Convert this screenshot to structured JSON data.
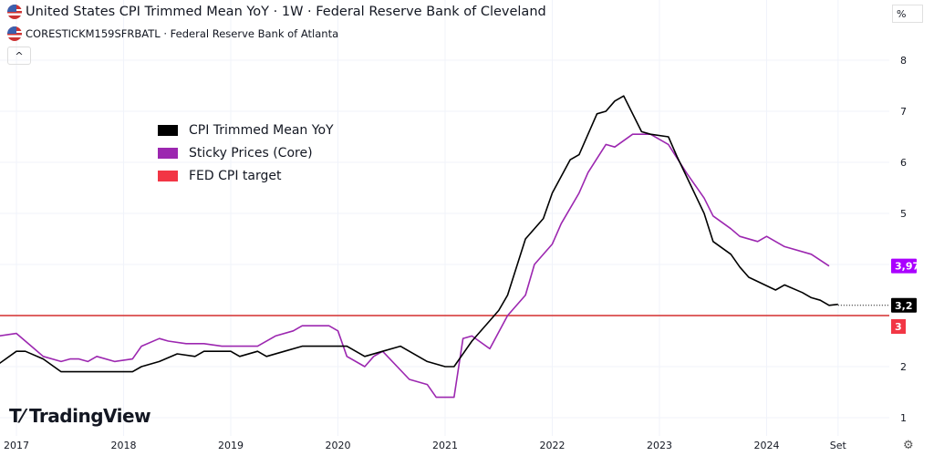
{
  "header": {
    "title": "United States CPI Trimmed Mean YoY · 1W · Federal Reserve Bank of Cleveland",
    "subtitle": "CORESTICKM159SFRBATL · Federal Reserve Bank of Atlanta",
    "collapse_label": "^",
    "unit_button": "%",
    "flag_icon": "us-flag-icon"
  },
  "branding": {
    "logo_text": "TradingView",
    "logo_mark": "17"
  },
  "chart_data": {
    "type": "line",
    "grid": true,
    "legend_placement": "top-left",
    "ylim": [
      0.6,
      8.2
    ],
    "xlim": [
      "2016-11",
      "2024-12"
    ],
    "y_ticks": [
      1,
      2,
      3,
      4,
      5,
      6,
      7,
      8
    ],
    "y_tick_labels": [
      "1",
      "2",
      "",
      "",
      "5",
      "6",
      "7",
      "8"
    ],
    "x_ticks": [
      {
        "date": "2017-01",
        "label": "2017"
      },
      {
        "date": "2018-01",
        "label": "2018"
      },
      {
        "date": "2019-01",
        "label": "2019"
      },
      {
        "date": "2020-01",
        "label": "2020"
      },
      {
        "date": "2021-01",
        "label": "2021"
      },
      {
        "date": "2022-01",
        "label": "2022"
      },
      {
        "date": "2023-01",
        "label": "2023"
      },
      {
        "date": "2024-01",
        "label": "2024"
      },
      {
        "date": "2024-09",
        "label": "Set"
      }
    ],
    "series": [
      {
        "name": "CPI Trimmed Mean YoY",
        "color": "#000000",
        "last_label": "3,2",
        "last_value": 3.2,
        "points": [
          [
            "2016-11",
            2.05
          ],
          [
            "2017-01",
            2.3
          ],
          [
            "2017-02",
            2.3
          ],
          [
            "2017-04",
            2.15
          ],
          [
            "2017-06",
            1.9
          ],
          [
            "2018-02",
            1.9
          ],
          [
            "2018-03",
            2.0
          ],
          [
            "2018-05",
            2.1
          ],
          [
            "2018-07",
            2.25
          ],
          [
            "2018-09",
            2.2
          ],
          [
            "2018-10",
            2.3
          ],
          [
            "2019-01",
            2.3
          ],
          [
            "2019-02",
            2.2
          ],
          [
            "2019-04",
            2.3
          ],
          [
            "2019-05",
            2.2
          ],
          [
            "2019-07",
            2.3
          ],
          [
            "2019-09",
            2.4
          ],
          [
            "2020-02",
            2.4
          ],
          [
            "2020-04",
            2.2
          ],
          [
            "2020-06",
            2.3
          ],
          [
            "2020-08",
            2.4
          ],
          [
            "2020-11",
            2.1
          ],
          [
            "2021-01",
            2.0
          ],
          [
            "2021-02",
            2.0
          ],
          [
            "2021-04",
            2.5
          ],
          [
            "2021-06",
            2.9
          ],
          [
            "2021-07",
            3.1
          ],
          [
            "2021-08",
            3.4
          ],
          [
            "2021-10",
            4.5
          ],
          [
            "2021-12",
            4.9
          ],
          [
            "2022-01",
            5.4
          ],
          [
            "2022-03",
            6.05
          ],
          [
            "2022-04",
            6.15
          ],
          [
            "2022-06",
            6.95
          ],
          [
            "2022-07",
            7.0
          ],
          [
            "2022-08",
            7.2
          ],
          [
            "2022-09",
            7.3
          ],
          [
            "2022-11",
            6.6
          ],
          [
            "2022-12",
            6.55
          ],
          [
            "2023-02",
            6.5
          ],
          [
            "2023-03",
            6.1
          ],
          [
            "2023-06",
            5.0
          ],
          [
            "2023-07",
            4.45
          ],
          [
            "2023-09",
            4.2
          ],
          [
            "2023-10",
            3.95
          ],
          [
            "2023-11",
            3.75
          ],
          [
            "2024-02",
            3.5
          ],
          [
            "2024-03",
            3.6
          ],
          [
            "2024-05",
            3.45
          ],
          [
            "2024-06",
            3.35
          ],
          [
            "2024-07",
            3.3
          ],
          [
            "2024-08",
            3.2
          ],
          [
            "2024-09",
            3.22
          ]
        ]
      },
      {
        "name": "Sticky Prices (Core)",
        "color": "#9c27b0",
        "last_label": "3,97",
        "last_value": 3.97,
        "label_color": "#aa00ff",
        "points": [
          [
            "2016-11",
            2.6
          ],
          [
            "2017-01",
            2.65
          ],
          [
            "2017-03",
            2.35
          ],
          [
            "2017-04",
            2.2
          ],
          [
            "2017-06",
            2.1
          ],
          [
            "2017-07",
            2.15
          ],
          [
            "2017-08",
            2.15
          ],
          [
            "2017-09",
            2.1
          ],
          [
            "2017-10",
            2.2
          ],
          [
            "2017-12",
            2.1
          ],
          [
            "2018-02",
            2.15
          ],
          [
            "2018-03",
            2.4
          ],
          [
            "2018-05",
            2.55
          ],
          [
            "2018-06",
            2.5
          ],
          [
            "2018-08",
            2.45
          ],
          [
            "2018-10",
            2.45
          ],
          [
            "2018-12",
            2.4
          ],
          [
            "2019-04",
            2.4
          ],
          [
            "2019-06",
            2.6
          ],
          [
            "2019-08",
            2.7
          ],
          [
            "2019-09",
            2.8
          ],
          [
            "2019-12",
            2.8
          ],
          [
            "2020-01",
            2.7
          ],
          [
            "2020-02",
            2.2
          ],
          [
            "2020-04",
            2.0
          ],
          [
            "2020-05",
            2.2
          ],
          [
            "2020-06",
            2.3
          ],
          [
            "2020-09",
            1.75
          ],
          [
            "2020-11",
            1.65
          ],
          [
            "2020-12",
            1.4
          ],
          [
            "2021-02",
            1.4
          ],
          [
            "2021-03",
            2.55
          ],
          [
            "2021-04",
            2.6
          ],
          [
            "2021-06",
            2.35
          ],
          [
            "2021-08",
            3.0
          ],
          [
            "2021-10",
            3.4
          ],
          [
            "2021-11",
            4.0
          ],
          [
            "2022-01",
            4.4
          ],
          [
            "2022-02",
            4.8
          ],
          [
            "2022-04",
            5.4
          ],
          [
            "2022-05",
            5.8
          ],
          [
            "2022-07",
            6.35
          ],
          [
            "2022-08",
            6.3
          ],
          [
            "2022-10",
            6.55
          ],
          [
            "2022-12",
            6.55
          ],
          [
            "2023-02",
            6.35
          ],
          [
            "2023-04",
            5.8
          ],
          [
            "2023-06",
            5.3
          ],
          [
            "2023-07",
            4.95
          ],
          [
            "2023-09",
            4.7
          ],
          [
            "2023-10",
            4.55
          ],
          [
            "2023-12",
            4.45
          ],
          [
            "2024-01",
            4.55
          ],
          [
            "2024-03",
            4.35
          ],
          [
            "2024-06",
            4.2
          ],
          [
            "2024-08",
            3.97
          ]
        ]
      },
      {
        "name": "FED CPI target",
        "color": "#d32f2f",
        "legend_color": "#f23645",
        "last_label": "3",
        "value": 3
      }
    ]
  }
}
